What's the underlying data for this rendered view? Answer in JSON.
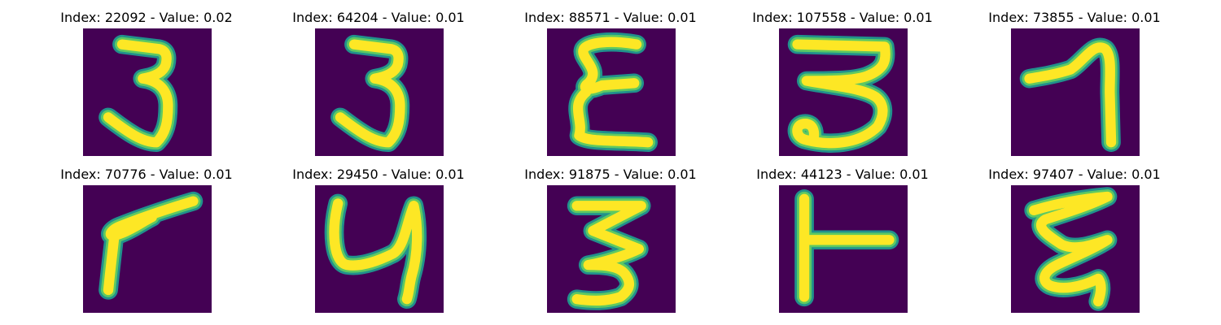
{
  "colors": {
    "background": "#440154",
    "stroke_edge": "#21918c",
    "stroke_mid": "#5ec962",
    "stroke_core": "#fde725"
  },
  "panels": [
    {
      "title": "Index: 22092 - Value: 0.02",
      "glyph": "3"
    },
    {
      "title": "Index: 64204 - Value: 0.01",
      "glyph": "3"
    },
    {
      "title": "Index: 88571 - Value: 0.01",
      "glyph": "E-curly"
    },
    {
      "title": "Index: 107558 - Value: 0.01",
      "glyph": "3-loop"
    },
    {
      "title": "Index: 73855 - Value: 0.01",
      "glyph": "7"
    },
    {
      "title": "Index: 70776 - Value: 0.01",
      "glyph": "7-open"
    },
    {
      "title": "Index: 29450 - Value: 0.01",
      "glyph": "4-curved"
    },
    {
      "title": "Index: 91875 - Value: 0.01",
      "glyph": "3-zigzag"
    },
    {
      "title": "Index: 44123 - Value: 0.01",
      "glyph": "T-rotated"
    },
    {
      "title": "Index: 97407 - Value: 0.01",
      "glyph": "E-zigzag"
    }
  ]
}
